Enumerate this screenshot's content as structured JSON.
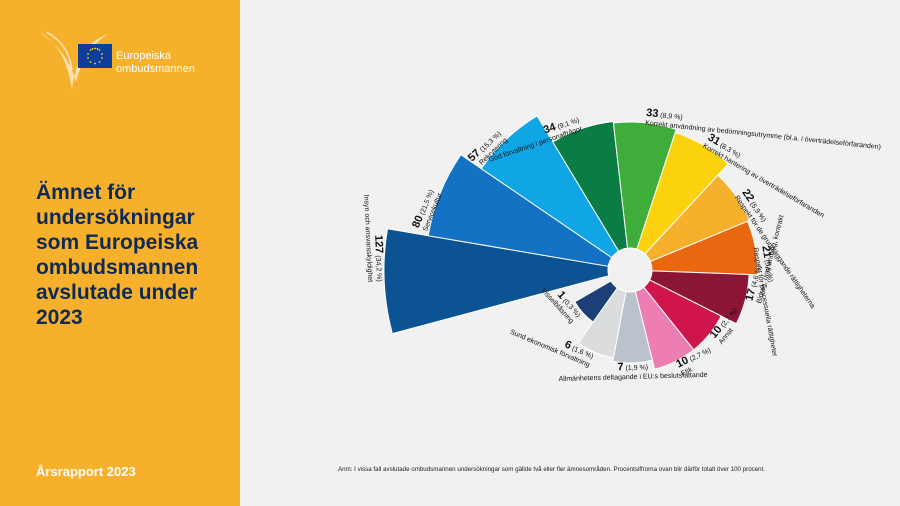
{
  "sidebar": {
    "logo_line1": "Europeiska",
    "logo_line2": "ombudsmannen",
    "title_lines": [
      "Ämnet för",
      "undersökningar",
      "som Europeiska",
      "ombudsmannen",
      "avslutade under",
      "2023"
    ],
    "report_label": "Årsrapport 2023"
  },
  "footnote": "Anm: I vissa fall avslutade ombudsmannen undersökningar som gällde två eller fler ämnesområden. Procentsiffrorna ovan blir därför totalt över 100 procent.",
  "colors": {
    "sidebar": "#f6b02c",
    "title": "#0e2a55",
    "background": "#f1f1f1"
  },
  "chart_data": {
    "type": "pie",
    "subtype": "polar-area",
    "series": [
      {
        "label": "Insyn och ansvarsskyldighet",
        "value": 127,
        "percent": "34,2 %",
        "color": "#0c5394"
      },
      {
        "label": "Servicekultur",
        "value": 80,
        "percent": "21,5 %",
        "color": "#1472c4"
      },
      {
        "label": "Rekrytering",
        "value": 57,
        "percent": "15,3 %",
        "color": "#10a6e6"
      },
      {
        "label": "God förvaltning i personalfrågor",
        "value": 34,
        "percent": "9,1 %",
        "color": "#0c7c45"
      },
      {
        "label": "Korrekt användning av bedömningsutrymme (bl.a. i överträdelseförfaranden)",
        "value": 33,
        "percent": "8,9 %",
        "color": "#3fad3a"
      },
      {
        "label": "Korrekt hantering av överträdelseförfaranden",
        "value": 31,
        "percent": "8,3 %",
        "color": "#fbd20d"
      },
      {
        "label": "Respekt för de grundläggande rättigheterna",
        "value": 22,
        "percent": "5,9 %",
        "color": "#f6b02c"
      },
      {
        "label": "Respekt för processuella rättigheter",
        "value": 21,
        "percent": "5,6 %",
        "color": "#e8670f"
      },
      {
        "label": "Bidrag, upphandling, kontrakt",
        "value": 17,
        "percent": "4,6 %",
        "color": "#8c1536"
      },
      {
        "label": "Annat",
        "value": 10,
        "percent": "2,7 %",
        "color": "#d0154d"
      },
      {
        "label": "Etik",
        "value": 10,
        "percent": "2,7 %",
        "color": "#ec7eb2"
      },
      {
        "label": "Allmänhetens deltagande i EU:s beslutsfattande",
        "value": 7,
        "percent": "1,9 %",
        "color": "#bac3cc"
      },
      {
        "label": "Sund ekonomisk förvaltning",
        "value": 6,
        "percent": "1,6 %",
        "color": "#dadcdd"
      },
      {
        "label": "Visselblåsning",
        "value": 1,
        "percent": "0,3 %",
        "color": "#1c3f77"
      }
    ]
  }
}
